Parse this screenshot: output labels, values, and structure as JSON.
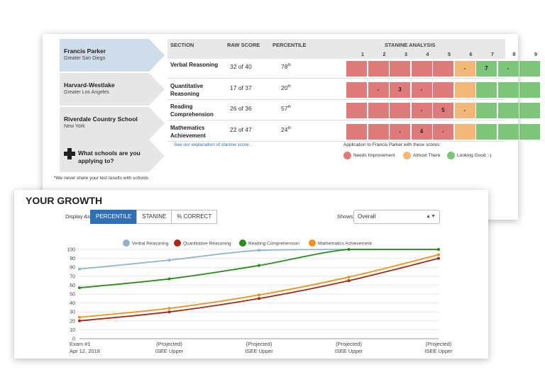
{
  "schools": [
    {
      "name": "Francis Parker",
      "location": "Greater San Diego",
      "active": true
    },
    {
      "name": "Harvard-Westlake",
      "location": "Greater Los Angeles",
      "active": false
    },
    {
      "name": "Riverdale Country School",
      "location": "New York",
      "active": false
    }
  ],
  "add_school_label": "What schools are you applying to?",
  "privacy_note": "*We never share your test results with schools",
  "table": {
    "headers": {
      "section": "SECTION",
      "raw": "RAW SCORE",
      "percentile": "PERCENTILE",
      "stanine": "STANINE ANALYSIS"
    },
    "stanine_numbers": [
      "1",
      "2",
      "3",
      "4",
      "5",
      "6",
      "7",
      "8",
      "9"
    ],
    "rows": [
      {
        "label": "Verbal Reasoning",
        "raw": "32 of 40",
        "pct": "78",
        "suffix": "th",
        "cells": [
          {
            "c": "red",
            "t": ""
          },
          {
            "c": "red",
            "t": ""
          },
          {
            "c": "red",
            "t": ""
          },
          {
            "c": "red",
            "t": ""
          },
          {
            "c": "red",
            "t": ""
          },
          {
            "c": "orange",
            "t": "-"
          },
          {
            "c": "green",
            "t": "7"
          },
          {
            "c": "green",
            "t": "-"
          },
          {
            "c": "green",
            "t": ""
          }
        ]
      },
      {
        "label": "Quantitative Reasoning",
        "raw": "17 of 37",
        "pct": "20",
        "suffix": "th",
        "cells": [
          {
            "c": "red",
            "t": ""
          },
          {
            "c": "red",
            "t": "-"
          },
          {
            "c": "red",
            "t": "3"
          },
          {
            "c": "red",
            "t": "-"
          },
          {
            "c": "red",
            "t": ""
          },
          {
            "c": "orange",
            "t": ""
          },
          {
            "c": "green",
            "t": ""
          },
          {
            "c": "green",
            "t": ""
          },
          {
            "c": "green",
            "t": ""
          }
        ]
      },
      {
        "label": "Reading Comprehension",
        "raw": "26 of 36",
        "pct": "57",
        "suffix": "th",
        "cells": [
          {
            "c": "red",
            "t": ""
          },
          {
            "c": "red",
            "t": ""
          },
          {
            "c": "red",
            "t": ""
          },
          {
            "c": "red",
            "t": "-"
          },
          {
            "c": "red",
            "t": "5"
          },
          {
            "c": "orange",
            "t": "-"
          },
          {
            "c": "green",
            "t": ""
          },
          {
            "c": "green",
            "t": ""
          },
          {
            "c": "green",
            "t": ""
          }
        ]
      },
      {
        "label": "Mathematics Achievement",
        "raw": "22 of 47",
        "pct": "24",
        "suffix": "th",
        "cells": [
          {
            "c": "red",
            "t": ""
          },
          {
            "c": "red",
            "t": ""
          },
          {
            "c": "red",
            "t": "-"
          },
          {
            "c": "red",
            "t": "4"
          },
          {
            "c": "red",
            "t": "-"
          },
          {
            "c": "orange",
            "t": ""
          },
          {
            "c": "green",
            "t": ""
          },
          {
            "c": "green",
            "t": ""
          },
          {
            "c": "green",
            "t": ""
          }
        ]
      }
    ]
  },
  "explain_link": "See our explanation of stanine score...",
  "legend": {
    "title": "Application to Francis Parker with these scores:",
    "items": [
      {
        "label": "Needs Improvement",
        "color": "#e07b7b"
      },
      {
        "label": "Almost There",
        "color": "#f2b879"
      },
      {
        "label": "Looking Good :-)",
        "color": "#7dc57a"
      }
    ]
  },
  "growth": {
    "title": "YOUR GROWTH",
    "display_label": "Display As:",
    "toggle": [
      "PERCENTILE",
      "STANINE",
      "% CORRECT"
    ],
    "toggle_active": 0,
    "shows_label": "Shows:",
    "shows_value": "Overall"
  },
  "chart_data": {
    "type": "line",
    "x": [
      "Exam #1|Apr 12, 2018",
      "(Projected)|ISEE Upper",
      "(Projected)|ISEE Upper",
      "(Projected)|ISEE Upper",
      "(Projected)|ISEE Upper"
    ],
    "ylim": [
      0,
      100
    ],
    "yticks": [
      0,
      10,
      20,
      30,
      40,
      50,
      60,
      70,
      80,
      90,
      100
    ],
    "series": [
      {
        "name": "Verbal Reasoning",
        "color": "#8fb3c9",
        "values": [
          78,
          88,
          99,
          100,
          100
        ]
      },
      {
        "name": "Quantitative Reasoning",
        "color": "#a52a1a",
        "values": [
          20,
          30,
          45,
          65,
          90
        ]
      },
      {
        "name": "Reading Comprehension",
        "color": "#2d8a1e",
        "values": [
          57,
          67,
          82,
          100,
          100
        ]
      },
      {
        "name": "Mathematics Achievement",
        "color": "#f0901e",
        "values": [
          24,
          34,
          49,
          69,
          94
        ]
      }
    ]
  }
}
